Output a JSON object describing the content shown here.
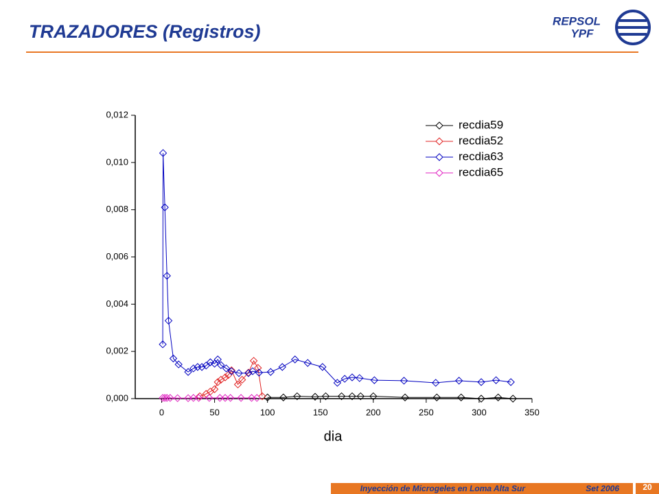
{
  "header": {
    "title": "TRAZADORES (Registros)",
    "logo": [
      "REPSOL",
      "YPF"
    ]
  },
  "footer": {
    "text": "Inyección de Microgeles en Loma Alta Sur",
    "date": "Set 2006",
    "page": "20"
  },
  "chart_data": {
    "type": "line",
    "x_label": "dia",
    "xlim": [
      -25,
      350
    ],
    "xticks": [
      0,
      50,
      100,
      150,
      200,
      250,
      300,
      350
    ],
    "ylim": [
      0,
      0.012
    ],
    "yticks": [
      {
        "value": 0,
        "label": "0,000"
      },
      {
        "value": 0.002,
        "label": "0,002"
      },
      {
        "value": 0.004,
        "label": "0,004"
      },
      {
        "value": 0.006,
        "label": "0,006"
      },
      {
        "value": 0.008,
        "label": "0,008"
      },
      {
        "value": 0.01,
        "label": "0,010"
      },
      {
        "value": 0.012,
        "label": "0,012"
      }
    ],
    "legend": "top-right",
    "series": [
      {
        "name": "recdia59",
        "color": "#000000",
        "x": [
          100,
          115,
          128,
          145,
          155,
          170,
          180,
          188,
          200,
          230,
          260,
          283,
          302,
          318,
          332
        ],
        "values": [
          5e-05,
          5e-05,
          0.0001,
          8e-05,
          0.0001,
          0.0001,
          0.0001,
          0.0001,
          0.0001,
          5e-05,
          5e-05,
          5e-05,
          0,
          5e-05,
          0
        ]
      },
      {
        "name": "recdia52",
        "color": "#e02020",
        "x": [
          36,
          42,
          46,
          50,
          53,
          56,
          60,
          63,
          66,
          72,
          76,
          82,
          87,
          91,
          95
        ],
        "values": [
          0.0001,
          0.0002,
          0.0003,
          0.0004,
          0.0007,
          0.0008,
          0.0009,
          0.001,
          0.0012,
          0.0006,
          0.0008,
          0.0011,
          0.0016,
          0.0013,
          0.0001
        ]
      },
      {
        "name": "recdia63",
        "color": "#0000c0",
        "x": [
          1,
          1.3,
          3,
          5,
          6.5,
          11,
          16,
          25,
          30,
          34,
          38,
          42,
          46,
          50,
          53,
          56,
          61,
          66,
          73,
          82,
          86,
          92,
          103,
          114,
          126,
          138,
          152,
          166,
          173,
          180,
          187,
          201,
          229,
          259,
          281,
          302,
          316,
          330
        ],
        "values": [
          0.0023,
          0.0104,
          0.0081,
          0.0052,
          0.0033,
          0.0017,
          0.00145,
          0.00113,
          0.00128,
          0.00134,
          0.00134,
          0.0014,
          0.00154,
          0.00148,
          0.00166,
          0.00142,
          0.00128,
          0.00116,
          0.00108,
          0.00108,
          0.00116,
          0.0011,
          0.00113,
          0.00134,
          0.00166,
          0.00151,
          0.00134,
          0.00067,
          0.00084,
          0.0009,
          0.00087,
          0.00078,
          0.00076,
          0.00067,
          0.00076,
          0.0007,
          0.00078,
          0.0007
        ]
      },
      {
        "name": "recdia65",
        "color": "#e020c0",
        "x": [
          1,
          3,
          5,
          8,
          15,
          25,
          30,
          35,
          45,
          55,
          60,
          65,
          75,
          85,
          90
        ],
        "values": [
          3e-05,
          3e-05,
          3e-05,
          3e-05,
          2e-05,
          2e-05,
          3e-05,
          3e-05,
          3e-05,
          3e-05,
          3e-05,
          3e-05,
          3e-05,
          3e-05,
          3e-05
        ]
      }
    ]
  }
}
